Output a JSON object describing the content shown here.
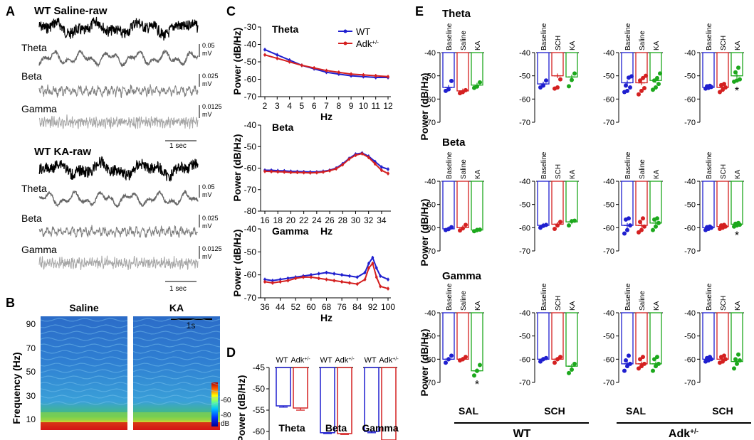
{
  "panel_labels": {
    "a": "A",
    "b": "B",
    "c": "C",
    "d": "D",
    "e": "E"
  },
  "panel_a": {
    "blocks": [
      {
        "title": "WT Saline-raw",
        "bands": [
          {
            "label": "Theta",
            "scale_value": "0.05",
            "scale_unit": "mV"
          },
          {
            "label": "Beta",
            "scale_value": "0.025",
            "scale_unit": "mV"
          },
          {
            "label": "Gamma",
            "scale_value": "0.0125",
            "scale_unit": "mV"
          }
        ],
        "time_bar": "1 sec"
      },
      {
        "title": "WT KA-raw",
        "bands": [
          {
            "label": "Theta",
            "scale_value": "0.05",
            "scale_unit": "mV"
          },
          {
            "label": "Beta",
            "scale_value": "0.025",
            "scale_unit": "mV"
          },
          {
            "label": "Gamma",
            "scale_value": "0.0125",
            "scale_unit": "mV"
          }
        ],
        "time_bar": "1 sec"
      }
    ],
    "colors": {
      "raw": "#000000",
      "theta": "#666666",
      "beta": "#7f7f7f",
      "gamma": "#a6a6a6"
    }
  },
  "panel_b": {
    "ylabel": "Frequency (Hz)",
    "yticks": [
      "90",
      "70",
      "50",
      "30",
      "10"
    ],
    "conditions": [
      "Saline",
      "KA"
    ],
    "time_bar": "1s",
    "colorbar_ticks": [
      "-60",
      "-80"
    ],
    "colorbar_unit": "dB"
  },
  "chart_data": [
    {
      "id": "C-theta",
      "type": "line",
      "title": "Theta",
      "xlabel": "Hz",
      "ylabel": "Power (dB/Hz)",
      "ylim": [
        -70,
        -30
      ],
      "yticks": [
        -30,
        -40,
        -50,
        -60,
        -70
      ],
      "x": [
        2,
        3,
        4,
        5,
        6,
        7,
        8,
        9,
        10,
        11,
        12
      ],
      "series": [
        {
          "name": "WT",
          "color": "#1f1fcf",
          "values": [
            -43,
            -46,
            -49,
            -52,
            -54,
            -56,
            -57,
            -58,
            -58.5,
            -59,
            -59
          ]
        },
        {
          "name": "Adk+/-",
          "color": "#d42020",
          "values": [
            -46,
            -48,
            -50,
            -52,
            -53.5,
            -55,
            -56,
            -57,
            -57.5,
            -58,
            -58.5
          ]
        }
      ],
      "legend": [
        "WT",
        "Adk+/-"
      ]
    },
    {
      "id": "C-beta",
      "type": "line",
      "title": "Beta",
      "xlabel": "Hz",
      "ylabel": "Power (dB/Hz)",
      "ylim": [
        -80,
        -40
      ],
      "yticks": [
        -40,
        -50,
        -60,
        -70,
        -80
      ],
      "x": [
        16,
        17,
        18,
        19,
        20,
        21,
        22,
        23,
        24,
        25,
        26,
        27,
        28,
        29,
        30,
        31,
        32,
        33,
        34,
        35
      ],
      "series": [
        {
          "name": "WT",
          "color": "#1f1fcf",
          "values": [
            -61,
            -61,
            -61.2,
            -61.3,
            -61.5,
            -61.6,
            -61.7,
            -61.8,
            -61.8,
            -61.5,
            -61,
            -60,
            -58,
            -55.5,
            -53.5,
            -53,
            -54.5,
            -57,
            -59.5,
            -60.5
          ]
        },
        {
          "name": "Adk+/-",
          "color": "#d42020",
          "values": [
            -61.5,
            -61.6,
            -61.7,
            -61.8,
            -62,
            -62,
            -62.1,
            -62.2,
            -62.1,
            -61.8,
            -61.2,
            -60.3,
            -58.4,
            -55.8,
            -54,
            -53.3,
            -55,
            -58,
            -61,
            -62.5
          ]
        }
      ]
    },
    {
      "id": "C-gamma",
      "type": "line",
      "title": "Gamma",
      "xlabel": "Hz",
      "ylabel": "Power (dB/Hz)",
      "ylim": [
        -70,
        -40
      ],
      "yticks": [
        -40,
        -50,
        -60,
        -70
      ],
      "xticks": [
        36,
        44,
        52,
        60,
        68,
        76,
        84,
        92,
        100
      ],
      "x": [
        36,
        40,
        44,
        48,
        52,
        56,
        60,
        64,
        68,
        72,
        76,
        80,
        84,
        88,
        90,
        92,
        94,
        96,
        100
      ],
      "series": [
        {
          "name": "WT",
          "color": "#1f1fcf",
          "values": [
            -62,
            -62.5,
            -62,
            -61.5,
            -61,
            -60.5,
            -60,
            -59.5,
            -59,
            -59.5,
            -60,
            -60.5,
            -61,
            -59,
            -55,
            -52.5,
            -57,
            -60.5,
            -62
          ]
        },
        {
          "name": "Adk+/-",
          "color": "#d42020",
          "values": [
            -63,
            -63.5,
            -63,
            -62.5,
            -61.5,
            -61,
            -61,
            -61.5,
            -62,
            -62.5,
            -63,
            -63.5,
            -64,
            -62,
            -57,
            -55,
            -61,
            -65,
            -66
          ]
        }
      ]
    },
    {
      "id": "D",
      "type": "bar",
      "ylabel": "Power (dB/Hz)",
      "ylim": [
        -65,
        -45
      ],
      "yticks": [
        -45,
        -50,
        -55,
        -60,
        -65
      ],
      "groups": [
        {
          "label": "Theta",
          "labels": [
            "WT",
            "Adk+/-"
          ],
          "values": [
            -54,
            -54.5
          ],
          "errors": [
            0.3,
            0.5
          ]
        },
        {
          "label": "Beta",
          "labels": [
            "WT",
            "Adk+/-"
          ],
          "values": [
            -60.3,
            -60.5
          ],
          "errors": [
            0.2,
            0.2
          ]
        },
        {
          "label": "Gamma",
          "labels": [
            "WT",
            "Adk+/-"
          ],
          "values": [
            -60,
            -62
          ],
          "errors": [
            0.3,
            0.4
          ],
          "annotation": "**"
        }
      ],
      "colors": [
        "#1f1fcf",
        "#d42020"
      ]
    },
    {
      "id": "E",
      "type": "bar",
      "ylabel": "Power (dB/Hz)",
      "ylim": [
        -70,
        -40
      ],
      "yticks": [
        -40,
        -50,
        -60,
        -70
      ],
      "rows": [
        {
          "band": "Theta",
          "panels": [
            {
              "bars": [
                {
                  "label": "Baseline",
                  "mean": -55,
                  "points": [
                    -56.5,
                    -55.8,
                    -52.2
                  ]
                },
                {
                  "label": "Saline",
                  "mean": -56.5,
                  "points": [
                    -57.5,
                    -57,
                    -56.2
                  ]
                },
                {
                  "label": "KA",
                  "mean": -54,
                  "points": [
                    -55.2,
                    -54.6,
                    -52.8
                  ]
                }
              ]
            },
            {
              "bars": [
                {
                  "label": "Baseline",
                  "mean": -53.5,
                  "points": [
                    -55,
                    -54.2,
                    -52
                  ]
                },
                {
                  "label": "SCH",
                  "mean": -50,
                  "points": [
                    -55.5,
                    -55,
                    -51.5
                  ]
                },
                {
                  "label": "KA",
                  "mean": -50.5,
                  "points": [
                    -54.5,
                    -51.8,
                    -49
                  ]
                }
              ]
            },
            {
              "bars": [
                {
                  "label": "Baseline",
                  "mean": -53,
                  "points": [
                    -57,
                    -56.5,
                    -55,
                    -54.2,
                    -50.8,
                    -50.2
                  ]
                },
                {
                  "label": "Saline",
                  "mean": -53,
                  "points": [
                    -58,
                    -56.5,
                    -55.3,
                    -52,
                    -51,
                    -50
                  ]
                },
                {
                  "label": "KA",
                  "mean": -52,
                  "points": [
                    -56,
                    -55,
                    -53.5,
                    -52,
                    -51,
                    -49
                  ]
                }
              ]
            },
            {
              "bars": [
                {
                  "label": "Baseline",
                  "mean": -55,
                  "points": [
                    -55.5,
                    -55.2,
                    -54.8,
                    -54.5,
                    -54.3
                  ]
                },
                {
                  "label": "SCH",
                  "mean": -55,
                  "points": [
                    -57,
                    -56,
                    -55,
                    -54,
                    -53.5
                  ]
                },
                {
                  "label": "KA",
                  "mean": -50,
                  "points": [
                    -52.5,
                    -52,
                    -51.5,
                    -48.5,
                    -46.5
                  ],
                  "annotation": "*"
                }
              ]
            }
          ]
        },
        {
          "band": "Beta",
          "panels": [
            {
              "bars": [
                {
                  "label": "Baseline",
                  "mean": -60.5,
                  "points": [
                    -61,
                    -60.6,
                    -59.8
                  ]
                },
                {
                  "label": "Saline",
                  "mean": -60,
                  "points": [
                    -61.2,
                    -60.3,
                    -58.8
                  ]
                },
                {
                  "label": "KA",
                  "mean": -61,
                  "points": [
                    -61.5,
                    -61,
                    -60.8
                  ]
                }
              ]
            },
            {
              "bars": [
                {
                  "label": "Baseline",
                  "mean": -59,
                  "points": [
                    -60,
                    -59.2,
                    -58.8
                  ]
                },
                {
                  "label": "SCH",
                  "mean": -58.5,
                  "points": [
                    -60.5,
                    -59,
                    -57.5
                  ]
                },
                {
                  "label": "KA",
                  "mean": -57.5,
                  "points": [
                    -59,
                    -57.2,
                    -57
                  ]
                }
              ]
            },
            {
              "bars": [
                {
                  "label": "Baseline",
                  "mean": -59,
                  "points": [
                    -62.5,
                    -61,
                    -59,
                    -56.5,
                    -56
                  ]
                },
                {
                  "label": "Saline",
                  "mean": -59,
                  "points": [
                    -62,
                    -61,
                    -59.5,
                    -57.5,
                    -56
                  ]
                },
                {
                  "label": "KA",
                  "mean": -58,
                  "points": [
                    -61,
                    -59.5,
                    -58,
                    -56.5,
                    -56
                  ]
                }
              ]
            },
            {
              "bars": [
                {
                  "label": "Baseline",
                  "mean": -60,
                  "points": [
                    -61,
                    -60.5,
                    -60,
                    -59.8,
                    -59.5
                  ]
                },
                {
                  "label": "SCH",
                  "mean": -59.5,
                  "points": [
                    -60.5,
                    -60,
                    -59.5,
                    -59,
                    -58.8
                  ]
                },
                {
                  "label": "KA",
                  "mean": -58.5,
                  "points": [
                    -59.5,
                    -59,
                    -58.7,
                    -58.3,
                    -58
                  ],
                  "annotation": "*"
                }
              ]
            }
          ]
        },
        {
          "band": "Gamma",
          "panels": [
            {
              "bars": [
                {
                  "label": "Baseline",
                  "mean": -60,
                  "points": [
                    -61.5,
                    -60,
                    -58.5
                  ]
                },
                {
                  "label": "Saline",
                  "mean": -60,
                  "points": [
                    -60.5,
                    -60,
                    -59
                  ]
                },
                {
                  "label": "KA",
                  "mean": -65,
                  "points": [
                    -67,
                    -65,
                    -62.5
                  ],
                  "annotation": "*"
                }
              ]
            },
            {
              "bars": [
                {
                  "label": "Baseline",
                  "mean": -60,
                  "points": [
                    -61,
                    -60,
                    -59.5
                  ]
                },
                {
                  "label": "SCH",
                  "mean": -60,
                  "points": [
                    -61.5,
                    -60,
                    -59
                  ]
                },
                {
                  "label": "KA",
                  "mean": -63,
                  "points": [
                    -66,
                    -64.5,
                    -62
                  ]
                }
              ]
            },
            {
              "bars": [
                {
                  "label": "Baseline",
                  "mean": -62,
                  "points": [
                    -65,
                    -63,
                    -62,
                    -60.5,
                    -58.5
                  ]
                },
                {
                  "label": "Saline",
                  "mean": -62,
                  "points": [
                    -64,
                    -63,
                    -62,
                    -60,
                    -59
                  ]
                },
                {
                  "label": "KA",
                  "mean": -62,
                  "points": [
                    -65,
                    -63,
                    -62,
                    -60,
                    -59
                  ]
                }
              ]
            },
            {
              "bars": [
                {
                  "label": "Baseline",
                  "mean": -60,
                  "points": [
                    -61,
                    -60.5,
                    -60,
                    -59.5,
                    -59
                  ]
                },
                {
                  "label": "SCH",
                  "mean": -60,
                  "points": [
                    -61.5,
                    -61,
                    -60,
                    -59,
                    -58.5
                  ]
                },
                {
                  "label": "KA",
                  "mean": -61,
                  "points": [
                    -64,
                    -62,
                    -60.5,
                    -60,
                    -58
                  ]
                }
              ]
            }
          ]
        }
      ],
      "treatment_labels": [
        "SAL",
        "SCH",
        "SAL",
        "SCH"
      ],
      "genotype_labels": [
        "WT",
        "Adk+/-"
      ],
      "colors": {
        "Baseline": "#1f1fcf",
        "Saline": "#d42020",
        "SCH": "#d42020",
        "KA": "#1ca81c"
      }
    }
  ]
}
